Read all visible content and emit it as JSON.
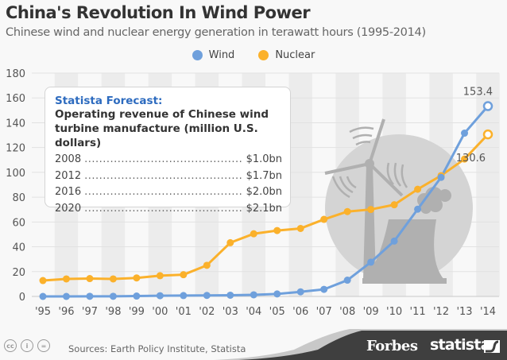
{
  "header": {
    "title": "China's Revolution In Wind Power",
    "subtitle": "Chinese wind and nuclear energy generation in terawatt hours (1995-2014)"
  },
  "legend": [
    {
      "label": "Wind",
      "color": "#6fa0dc"
    },
    {
      "label": "Nuclear",
      "color": "#fbb12b"
    }
  ],
  "forecast_box": {
    "title": "Statista Forecast:",
    "subtitle_line1": "Operating revenue of Chinese wind",
    "subtitle_line2": "turbine manufacture (million U.S. dollars)",
    "dots": "..........................................................................",
    "rows": [
      {
        "year": "2008",
        "value": "$1.0bn"
      },
      {
        "year": "2012",
        "value": "$1.7bn"
      },
      {
        "year": "2016",
        "value": "$2.0bn"
      },
      {
        "year": "2020",
        "value": "$2.1bn"
      }
    ]
  },
  "footer": {
    "sources": "Sources: Earth Policy Institute, Statista",
    "cc_icons": [
      "cc-icon",
      "attribution-icon",
      "no-derivatives-icon"
    ],
    "cc_glyphs": [
      "cc",
      "i",
      "="
    ],
    "brand1": "Forbes",
    "brand2": "statista"
  },
  "colors": {
    "wind": "#6fa0dc",
    "nuclear": "#fbb12b",
    "stripe": "#ececec",
    "grid": "#e2e2e2",
    "illustration": "#b0b0b0",
    "illustration_circle": "#d4d4d4",
    "brand_bar": "#3f3f3f"
  },
  "chart_data": {
    "type": "line",
    "title": "China's Revolution In Wind Power",
    "subtitle": "Chinese wind and nuclear energy generation in terawatt hours (1995-2014)",
    "xlabel": "",
    "ylabel": "",
    "categories": [
      "'95",
      "'96",
      "'97",
      "'98",
      "'99",
      "'00",
      "'01",
      "'02",
      "'03",
      "'04",
      "'05",
      "'06",
      "'07",
      "'08",
      "'09",
      "'10",
      "'11",
      "'12",
      "'13",
      "'14"
    ],
    "yticks": [
      0,
      20,
      40,
      60,
      80,
      100,
      120,
      140,
      160,
      180
    ],
    "ylim": [
      0,
      180
    ],
    "grid": true,
    "legend_position": "top-center",
    "series": [
      {
        "name": "Wind",
        "color": "#6fa0dc",
        "values": [
          0.0,
          0.0,
          0.1,
          0.1,
          0.3,
          0.6,
          0.7,
          0.8,
          1.0,
          1.3,
          2.0,
          3.7,
          5.7,
          13.1,
          27.6,
          44.6,
          70.3,
          96.0,
          131.6,
          153.4
        ],
        "end_label": "153.4"
      },
      {
        "name": "Nuclear",
        "color": "#fbb12b",
        "values": [
          12.8,
          14.1,
          14.4,
          14.1,
          14.9,
          16.7,
          17.5,
          25.1,
          43.3,
          50.5,
          53.1,
          54.8,
          62.1,
          68.4,
          70.1,
          73.9,
          86.4,
          97.4,
          110.7,
          130.6
        ],
        "end_label": "130.6"
      }
    ]
  }
}
